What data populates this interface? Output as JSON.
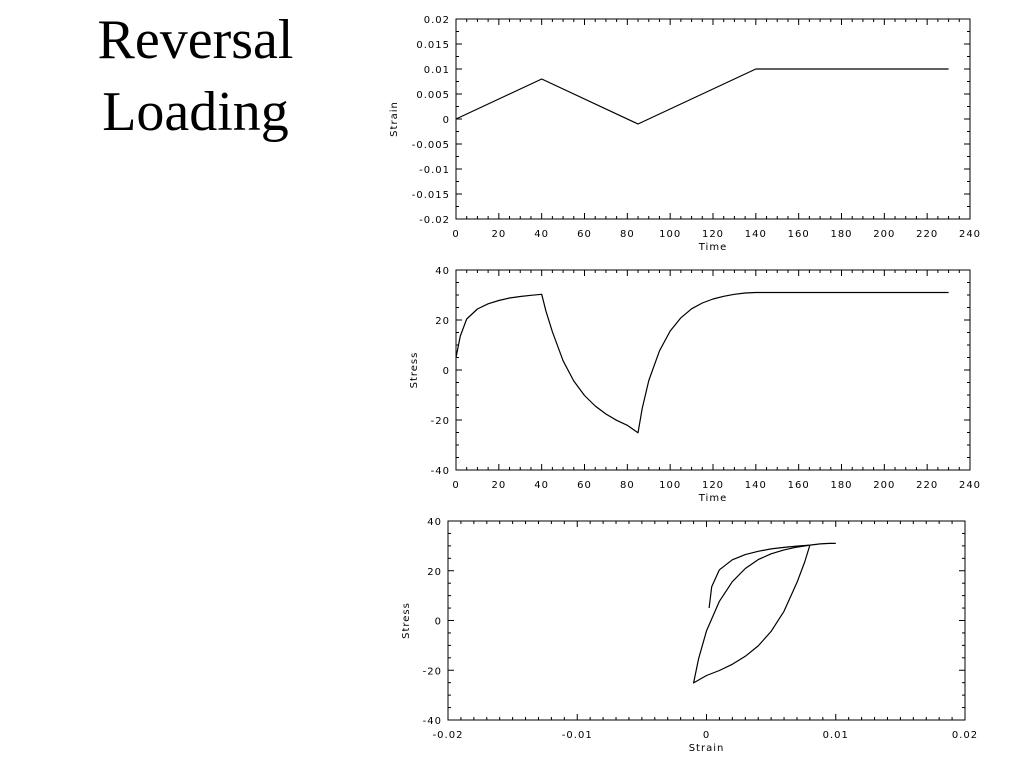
{
  "slide": {
    "title_line1": "Reversal",
    "title_line2": "Loading"
  },
  "chart_data": [
    {
      "type": "line",
      "xlabel": "Time",
      "ylabel": "Strain",
      "xlim": [
        0,
        240
      ],
      "ylim": [
        -0.02,
        0.02
      ],
      "xticks": [
        "0",
        "20",
        "40",
        "60",
        "80",
        "100",
        "120",
        "140",
        "160",
        "180",
        "200",
        "220",
        "240"
      ],
      "yticks": [
        "-0.02",
        "-0.015",
        "-0.01",
        "-0.005",
        "0",
        "0.005",
        "0.01",
        "0.015",
        "0.02"
      ],
      "series": [
        {
          "x": [
            0,
            40,
            85,
            140,
            230
          ],
          "y": [
            0,
            0.008,
            -0.001,
            0.01,
            0.01
          ]
        }
      ]
    },
    {
      "type": "line",
      "xlabel": "Time",
      "ylabel": "Stress",
      "xlim": [
        0,
        240
      ],
      "ylim": [
        -40,
        40
      ],
      "xticks": [
        "0",
        "20",
        "40",
        "60",
        "80",
        "100",
        "120",
        "140",
        "160",
        "180",
        "200",
        "220",
        "240"
      ],
      "yticks": [
        "-40",
        "-20",
        "0",
        "20",
        "40"
      ],
      "series": [
        {
          "x": [
            0,
            2,
            5,
            10,
            15,
            20,
            25,
            30,
            35,
            40,
            42,
            45,
            50,
            55,
            60,
            65,
            70,
            75,
            80,
            85,
            87,
            90,
            95,
            100,
            105,
            110,
            115,
            120,
            125,
            130,
            135,
            140,
            150,
            170,
            200,
            230
          ],
          "y": [
            5,
            13.6,
            20.4,
            24.4,
            26.5,
            27.8,
            28.8,
            29.4,
            29.9,
            30.3,
            23.5,
            15.3,
            3.7,
            -4.4,
            -10.2,
            -14.4,
            -17.6,
            -20.1,
            -22.1,
            -25.1,
            -15.2,
            -4.2,
            7.7,
            15.6,
            20.9,
            24.5,
            26.8,
            28.4,
            29.5,
            30.3,
            30.8,
            31,
            31,
            31,
            31,
            31
          ]
        }
      ]
    },
    {
      "type": "line",
      "xlabel": "Strain",
      "ylabel": "Stress",
      "xlim": [
        -0.02,
        0.02
      ],
      "ylim": [
        -40,
        40
      ],
      "xticks": [
        "-0.02",
        "-0.01",
        "0",
        "0.01",
        "0.02"
      ],
      "yticks": [
        "-40",
        "-20",
        "0",
        "20",
        "40"
      ],
      "series": [
        {
          "x": [
            0.0002,
            0.0004,
            0.001,
            0.002,
            0.003,
            0.004,
            0.005,
            0.006,
            0.007,
            0.008,
            0.0076,
            0.007,
            0.006,
            0.005,
            0.004,
            0.003,
            0.002,
            0.001,
            0,
            -0.001,
            -0.0006,
            0,
            0.001,
            0.002,
            0.003,
            0.004,
            0.005,
            0.006,
            0.007,
            0.008,
            0.0088,
            0.0095,
            0.01
          ],
          "y": [
            5,
            13.6,
            20.4,
            24.4,
            26.5,
            27.8,
            28.8,
            29.4,
            29.9,
            30.3,
            23.5,
            15.3,
            3.7,
            -4.4,
            -10.2,
            -14.4,
            -17.6,
            -20.1,
            -22.1,
            -25.1,
            -15.2,
            -4.2,
            7.7,
            15.6,
            20.9,
            24.5,
            26.8,
            28.4,
            29.5,
            30.3,
            30.8,
            31,
            31
          ]
        }
      ]
    }
  ]
}
